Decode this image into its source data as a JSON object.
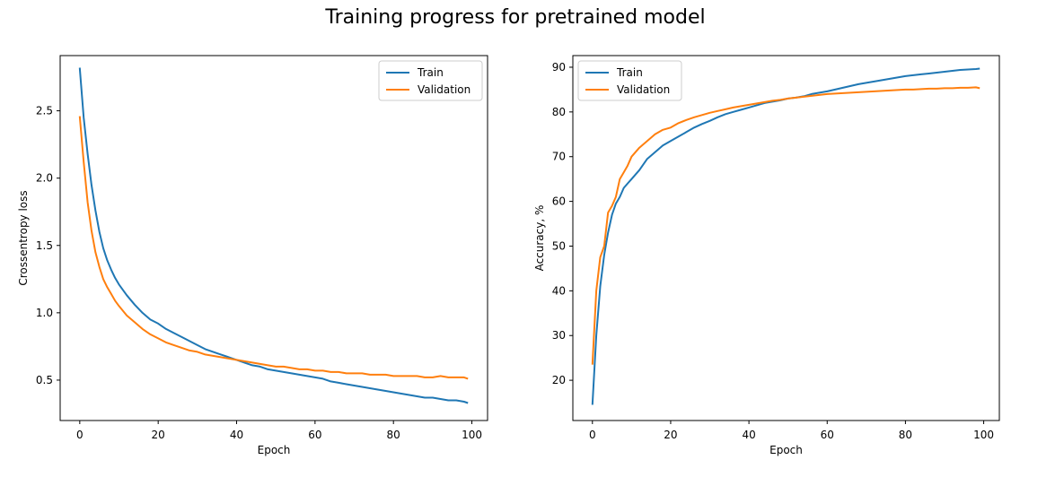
{
  "figure": {
    "suptitle": "Training progress for pretrained model"
  },
  "colors": {
    "train": "#1f77b4",
    "validation": "#ff7f0e",
    "axes": "#000000",
    "text": "#000000"
  },
  "chart_data": [
    {
      "type": "line",
      "title": "",
      "xlabel": "Epoch",
      "ylabel": "Crossentropy loss",
      "xlim": [
        -5,
        104
      ],
      "ylim": [
        0.2,
        2.91
      ],
      "xticks": [
        0,
        20,
        40,
        60,
        80,
        100
      ],
      "yticks": [
        0.5,
        1.0,
        1.5,
        2.0,
        2.5
      ],
      "xtick_labels": [
        "0",
        "20",
        "40",
        "60",
        "80",
        "100"
      ],
      "ytick_labels": [
        "0.5",
        "1.0",
        "1.5",
        "2.0",
        "2.5"
      ],
      "grid": false,
      "legend": "top-right",
      "series": [
        {
          "name": "Train",
          "color": "#1f77b4",
          "x": [
            0,
            1,
            2,
            3,
            4,
            5,
            6,
            7,
            8,
            9,
            10,
            12,
            14,
            16,
            18,
            20,
            22,
            24,
            26,
            28,
            30,
            32,
            34,
            36,
            38,
            40,
            42,
            44,
            46,
            48,
            50,
            52,
            54,
            56,
            58,
            60,
            62,
            64,
            66,
            68,
            70,
            72,
            74,
            76,
            78,
            80,
            82,
            84,
            86,
            88,
            90,
            92,
            94,
            96,
            98,
            99
          ],
          "y": [
            2.82,
            2.45,
            2.18,
            1.95,
            1.76,
            1.6,
            1.48,
            1.39,
            1.32,
            1.26,
            1.21,
            1.13,
            1.06,
            1.0,
            0.95,
            0.92,
            0.88,
            0.85,
            0.82,
            0.79,
            0.76,
            0.73,
            0.71,
            0.69,
            0.67,
            0.65,
            0.63,
            0.61,
            0.6,
            0.58,
            0.57,
            0.56,
            0.55,
            0.54,
            0.53,
            0.52,
            0.51,
            0.49,
            0.48,
            0.47,
            0.46,
            0.45,
            0.44,
            0.43,
            0.42,
            0.41,
            0.4,
            0.39,
            0.38,
            0.37,
            0.37,
            0.36,
            0.35,
            0.35,
            0.34,
            0.33
          ]
        },
        {
          "name": "Validation",
          "color": "#ff7f0e",
          "x": [
            0,
            1,
            2,
            3,
            4,
            5,
            6,
            7,
            8,
            9,
            10,
            12,
            14,
            16,
            18,
            20,
            22,
            24,
            26,
            28,
            30,
            32,
            34,
            36,
            38,
            40,
            42,
            44,
            46,
            48,
            50,
            52,
            54,
            56,
            58,
            60,
            62,
            64,
            66,
            68,
            70,
            72,
            74,
            76,
            78,
            80,
            82,
            84,
            86,
            88,
            90,
            92,
            94,
            96,
            98,
            99
          ],
          "y": [
            2.46,
            2.12,
            1.82,
            1.61,
            1.45,
            1.34,
            1.25,
            1.19,
            1.14,
            1.09,
            1.05,
            0.98,
            0.93,
            0.88,
            0.84,
            0.81,
            0.78,
            0.76,
            0.74,
            0.72,
            0.71,
            0.69,
            0.68,
            0.67,
            0.66,
            0.65,
            0.64,
            0.63,
            0.62,
            0.61,
            0.6,
            0.6,
            0.59,
            0.58,
            0.58,
            0.57,
            0.57,
            0.56,
            0.56,
            0.55,
            0.55,
            0.55,
            0.54,
            0.54,
            0.54,
            0.53,
            0.53,
            0.53,
            0.53,
            0.52,
            0.52,
            0.53,
            0.52,
            0.52,
            0.52,
            0.51
          ]
        }
      ]
    },
    {
      "type": "line",
      "title": "",
      "xlabel": "Epoch",
      "ylabel": "Accuracy, %",
      "xlim": [
        -5,
        104
      ],
      "ylim": [
        11,
        92.6
      ],
      "xticks": [
        0,
        20,
        40,
        60,
        80,
        100
      ],
      "yticks": [
        20,
        30,
        40,
        50,
        60,
        70,
        80,
        90
      ],
      "xtick_labels": [
        "0",
        "20",
        "40",
        "60",
        "80",
        "100"
      ],
      "ytick_labels": [
        "20",
        "30",
        "40",
        "50",
        "60",
        "70",
        "80",
        "90"
      ],
      "grid": false,
      "legend": "top-left",
      "series": [
        {
          "name": "Train",
          "color": "#1f77b4",
          "x": [
            0,
            1,
            2,
            3,
            4,
            5,
            6,
            7,
            8,
            9,
            10,
            12,
            14,
            16,
            18,
            20,
            22,
            24,
            26,
            28,
            30,
            32,
            34,
            36,
            38,
            40,
            42,
            44,
            46,
            48,
            50,
            52,
            54,
            56,
            58,
            60,
            62,
            64,
            66,
            68,
            70,
            72,
            74,
            76,
            78,
            80,
            82,
            84,
            86,
            88,
            90,
            92,
            94,
            96,
            98,
            99
          ],
          "y": [
            14.5,
            30,
            41,
            48,
            53,
            57,
            59.5,
            61,
            63,
            64,
            65,
            67,
            69.5,
            71,
            72.5,
            73.5,
            74.5,
            75.5,
            76.5,
            77.3,
            78,
            78.8,
            79.5,
            80,
            80.5,
            81,
            81.5,
            82,
            82.3,
            82.6,
            83,
            83.2,
            83.5,
            84,
            84.3,
            84.6,
            85,
            85.4,
            85.8,
            86.2,
            86.5,
            86.8,
            87.1,
            87.4,
            87.7,
            88,
            88.2,
            88.4,
            88.6,
            88.8,
            89,
            89.2,
            89.4,
            89.5,
            89.6,
            89.7
          ]
        },
        {
          "name": "Validation",
          "color": "#ff7f0e",
          "x": [
            0,
            1,
            2,
            3,
            4,
            5,
            6,
            7,
            8,
            9,
            10,
            12,
            14,
            16,
            18,
            20,
            22,
            24,
            26,
            28,
            30,
            32,
            34,
            36,
            38,
            40,
            42,
            44,
            46,
            48,
            50,
            52,
            54,
            56,
            58,
            60,
            62,
            64,
            66,
            68,
            70,
            72,
            74,
            76,
            78,
            80,
            82,
            84,
            86,
            88,
            90,
            92,
            94,
            96,
            98,
            99
          ],
          "y": [
            23.5,
            40,
            47.5,
            50,
            57.5,
            59,
            61,
            65,
            66.5,
            68,
            70,
            72,
            73.5,
            75,
            76,
            76.5,
            77.5,
            78.2,
            78.8,
            79.3,
            79.8,
            80.2,
            80.6,
            81,
            81.3,
            81.6,
            81.9,
            82.2,
            82.5,
            82.7,
            83,
            83.2,
            83.4,
            83.6,
            83.8,
            84,
            84.1,
            84.2,
            84.3,
            84.4,
            84.5,
            84.6,
            84.7,
            84.8,
            84.9,
            85,
            85,
            85.1,
            85.2,
            85.2,
            85.3,
            85.3,
            85.4,
            85.4,
            85.5,
            85.3
          ]
        }
      ]
    }
  ]
}
